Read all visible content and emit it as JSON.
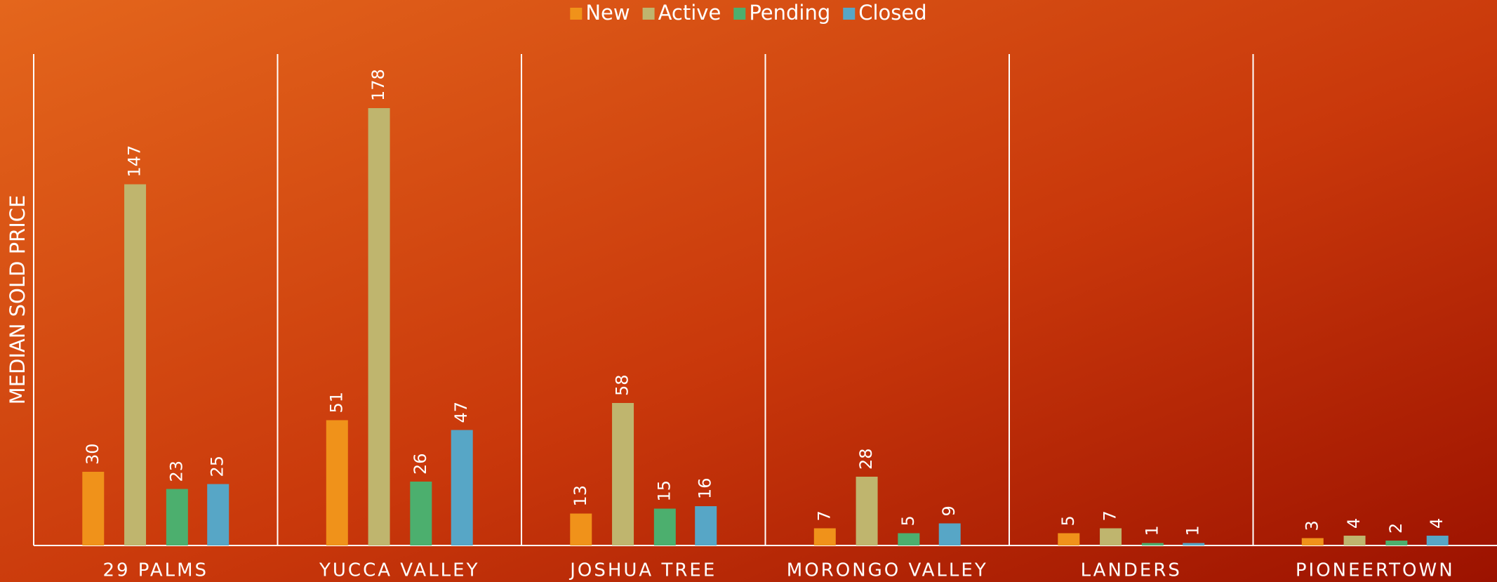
{
  "chart_data": {
    "type": "bar",
    "y_axis_label": "MEDIAN SOLD PRICE",
    "categories": [
      "29 PALMS",
      "YUCCA VALLEY",
      "JOSHUA TREE",
      "MORONGO VALLEY",
      "LANDERS",
      "PIONEERTOWN"
    ],
    "series": [
      {
        "name": "New",
        "color": "#f0921a",
        "values": [
          30,
          51,
          13,
          7,
          5,
          3
        ]
      },
      {
        "name": "Active",
        "color": "#bfb56e",
        "values": [
          147,
          178,
          58,
          28,
          7,
          4
        ]
      },
      {
        "name": "Pending",
        "color": "#4caf6e",
        "values": [
          23,
          26,
          15,
          5,
          1,
          2
        ]
      },
      {
        "name": "Closed",
        "color": "#57a6c6",
        "values": [
          25,
          47,
          16,
          9,
          1,
          4
        ]
      }
    ],
    "ylim": [
      0,
      200
    ],
    "legend": "top"
  }
}
